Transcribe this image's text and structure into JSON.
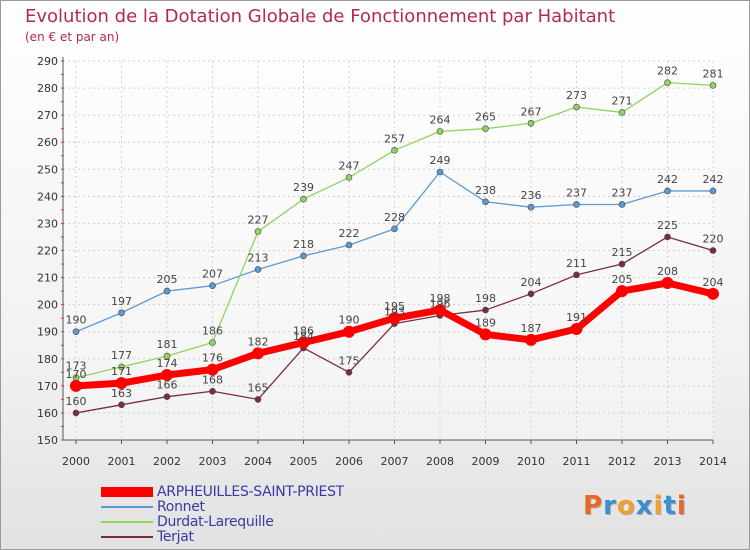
{
  "title": "Evolution de la Dotation Globale de Fonctionnement par Habitant",
  "subtitle": "(en € et par an)",
  "logo": {
    "text": "Proxiti",
    "colors": [
      "#e8682a",
      "#3a8fd0",
      "#f0a030",
      "#3a8fd0",
      "#f0a030",
      "#3a8fd0",
      "#e8682a"
    ]
  },
  "chart_data": {
    "type": "line",
    "title": "Evolution de la Dotation Globale de Fonctionnement par Habitant",
    "subtitle": "(en € et par an)",
    "x": [
      "2000",
      "2001",
      "2002",
      "2003",
      "2004",
      "2005",
      "2006",
      "2007",
      "2008",
      "2009",
      "2010",
      "2011",
      "2012",
      "2013",
      "2014"
    ],
    "ylim": [
      150,
      290
    ],
    "yticks": [
      150,
      160,
      170,
      180,
      190,
      200,
      210,
      220,
      230,
      240,
      250,
      260,
      270,
      280,
      290
    ],
    "grid": true,
    "legend_position": "bottom-left",
    "series": [
      {
        "name": "ARPHEUILLES-SAINT-PRIEST",
        "color": "#ff0000",
        "width": 7,
        "marker": 6,
        "values": [
          170,
          171,
          174,
          176,
          182,
          186,
          190,
          195,
          198,
          189,
          187,
          191,
          205,
          208,
          204
        ]
      },
      {
        "name": "Ronnet",
        "color": "#5b9bd5",
        "width": 1.3,
        "marker": 3,
        "values": [
          190,
          197,
          205,
          207,
          213,
          218,
          222,
          228,
          249,
          238,
          236,
          237,
          237,
          242,
          242
        ]
      },
      {
        "name": "Durdat-Larequille",
        "color": "#8fd461",
        "width": 1.3,
        "marker": 3,
        "values": [
          173,
          177,
          181,
          186,
          227,
          239,
          247,
          257,
          264,
          265,
          267,
          273,
          271,
          282,
          281
        ]
      },
      {
        "name": "Terjat",
        "color": "#7b2e3a",
        "width": 1.3,
        "marker": 3,
        "values": [
          160,
          163,
          166,
          168,
          165,
          184,
          175,
          193,
          196,
          198,
          204,
          211,
          215,
          225,
          220
        ]
      }
    ]
  }
}
